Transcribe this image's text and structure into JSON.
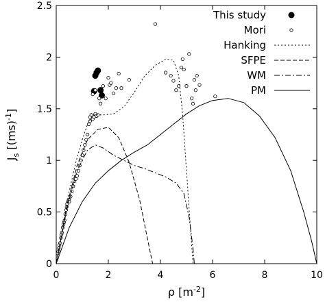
{
  "chart_data": {
    "type": "scatter",
    "xlabel_main": "ρ [m",
    "xlabel_sup": "-2",
    "xlabel_end": "]",
    "ylabel_main": "J",
    "ylabel_sub": "s",
    "ylabel_mid": " [(ms)",
    "ylabel_sup": "-1",
    "ylabel_end": "]",
    "xlim": [
      0,
      10
    ],
    "ylim": [
      0,
      2.5
    ],
    "xticks": [
      "0",
      "2",
      "4",
      "6",
      "8",
      "10"
    ],
    "yticks": [
      "0",
      "0.5",
      "1",
      "1.5",
      "2",
      "2.5"
    ],
    "grid": false,
    "legend_position": "top-right",
    "series": [
      {
        "name": "This study",
        "kind": "points",
        "marker": "filled-circle",
        "points": [
          [
            1.45,
            1.67
          ],
          [
            1.5,
            1.82
          ],
          [
            1.55,
            1.85
          ],
          [
            1.6,
            1.87
          ],
          [
            1.7,
            1.68
          ],
          [
            1.75,
            1.63
          ]
        ]
      },
      {
        "name": "Mori",
        "kind": "points",
        "marker": "open-circle",
        "points": [
          [
            0.02,
            0.05
          ],
          [
            0.05,
            0.1
          ],
          [
            0.08,
            0.12
          ],
          [
            0.1,
            0.15
          ],
          [
            0.12,
            0.18
          ],
          [
            0.15,
            0.2
          ],
          [
            0.18,
            0.25
          ],
          [
            0.2,
            0.28
          ],
          [
            0.22,
            0.3
          ],
          [
            0.25,
            0.35
          ],
          [
            0.28,
            0.38
          ],
          [
            0.3,
            0.4
          ],
          [
            0.32,
            0.42
          ],
          [
            0.35,
            0.48
          ],
          [
            0.38,
            0.52
          ],
          [
            0.4,
            0.55
          ],
          [
            0.42,
            0.58
          ],
          [
            0.45,
            0.6
          ],
          [
            0.48,
            0.62
          ],
          [
            0.5,
            0.6
          ],
          [
            0.55,
            0.65
          ],
          [
            0.6,
            0.7
          ],
          [
            0.65,
            0.75
          ],
          [
            0.7,
            0.8
          ],
          [
            0.75,
            0.82
          ],
          [
            0.8,
            0.85
          ],
          [
            0.85,
            0.9
          ],
          [
            0.9,
            0.95
          ],
          [
            0.95,
            1.0
          ],
          [
            1.0,
            1.05
          ],
          [
            1.05,
            1.1
          ],
          [
            1.1,
            1.15
          ],
          [
            1.15,
            1.2
          ],
          [
            1.2,
            1.25
          ],
          [
            1.25,
            1.35
          ],
          [
            1.3,
            1.38
          ],
          [
            1.3,
            1.42
          ],
          [
            1.35,
            1.44
          ],
          [
            1.4,
            1.4
          ],
          [
            1.45,
            1.42
          ],
          [
            1.5,
            1.45
          ],
          [
            1.55,
            1.43
          ],
          [
            1.6,
            1.44
          ],
          [
            1.4,
            1.64
          ],
          [
            1.5,
            1.68
          ],
          [
            1.65,
            1.6
          ],
          [
            1.7,
            1.55
          ],
          [
            1.8,
            1.72
          ],
          [
            1.9,
            1.6
          ],
          [
            2.0,
            1.8
          ],
          [
            2.05,
            1.73
          ],
          [
            2.1,
            1.75
          ],
          [
            2.2,
            1.65
          ],
          [
            2.3,
            1.7
          ],
          [
            2.4,
            1.84
          ],
          [
            2.5,
            1.7
          ],
          [
            2.8,
            1.78
          ],
          [
            3.8,
            2.32
          ],
          [
            4.2,
            1.85
          ],
          [
            4.4,
            1.82
          ],
          [
            4.5,
            1.77
          ],
          [
            4.6,
            1.68
          ],
          [
            4.7,
            1.72
          ],
          [
            4.8,
            1.9
          ],
          [
            4.85,
            1.98
          ],
          [
            4.9,
            1.88
          ],
          [
            5.0,
            1.72
          ],
          [
            5.1,
            2.03
          ],
          [
            5.2,
            1.6
          ],
          [
            5.3,
            1.78
          ],
          [
            5.35,
            1.68
          ],
          [
            5.4,
            1.82
          ],
          [
            5.5,
            1.73
          ],
          [
            6.1,
            1.62
          ],
          [
            5.25,
            1.55
          ]
        ]
      },
      {
        "name": "Hanking",
        "kind": "line",
        "dash": "2,3",
        "points": [
          [
            0.0,
            0.0
          ],
          [
            0.25,
            0.35
          ],
          [
            0.5,
            0.7
          ],
          [
            0.75,
            0.98
          ],
          [
            1.0,
            1.2
          ],
          [
            1.2,
            1.35
          ],
          [
            1.4,
            1.44
          ],
          [
            1.8,
            1.44
          ],
          [
            2.2,
            1.45
          ],
          [
            2.6,
            1.52
          ],
          [
            3.0,
            1.66
          ],
          [
            3.4,
            1.82
          ],
          [
            3.8,
            1.92
          ],
          [
            4.2,
            1.98
          ],
          [
            4.5,
            1.97
          ],
          [
            4.7,
            1.82
          ],
          [
            4.85,
            1.45
          ],
          [
            5.0,
            0.9
          ],
          [
            5.15,
            0.35
          ],
          [
            5.25,
            0.0
          ]
        ]
      },
      {
        "name": "SFPE",
        "kind": "line",
        "dash": "6,3",
        "points": [
          [
            0.0,
            0.0
          ],
          [
            0.4,
            0.55
          ],
          [
            0.8,
            0.95
          ],
          [
            1.2,
            1.2
          ],
          [
            1.6,
            1.3
          ],
          [
            2.0,
            1.32
          ],
          [
            2.4,
            1.22
          ],
          [
            2.8,
            0.98
          ],
          [
            3.2,
            0.62
          ],
          [
            3.6,
            0.12
          ],
          [
            3.7,
            0.0
          ]
        ]
      },
      {
        "name": "WM",
        "kind": "line",
        "dash": "8,3,2,3",
        "points": [
          [
            0.0,
            0.0
          ],
          [
            0.4,
            0.52
          ],
          [
            0.8,
            0.9
          ],
          [
            1.2,
            1.1
          ],
          [
            1.5,
            1.15
          ],
          [
            1.8,
            1.12
          ],
          [
            2.2,
            1.05
          ],
          [
            2.6,
            1.0
          ],
          [
            3.0,
            0.95
          ],
          [
            3.4,
            0.92
          ],
          [
            3.8,
            0.88
          ],
          [
            4.2,
            0.84
          ],
          [
            4.6,
            0.78
          ],
          [
            4.9,
            0.68
          ],
          [
            5.1,
            0.45
          ],
          [
            5.25,
            0.15
          ],
          [
            5.3,
            0.0
          ]
        ]
      },
      {
        "name": "PM",
        "kind": "line",
        "dash": "",
        "points": [
          [
            0.0,
            0.0
          ],
          [
            0.5,
            0.35
          ],
          [
            1.0,
            0.6
          ],
          [
            1.5,
            0.78
          ],
          [
            2.0,
            0.9
          ],
          [
            2.5,
            1.0
          ],
          [
            3.0,
            1.08
          ],
          [
            3.5,
            1.15
          ],
          [
            4.0,
            1.25
          ],
          [
            4.5,
            1.35
          ],
          [
            5.0,
            1.45
          ],
          [
            5.5,
            1.53
          ],
          [
            6.0,
            1.58
          ],
          [
            6.6,
            1.6
          ],
          [
            7.2,
            1.56
          ],
          [
            7.8,
            1.43
          ],
          [
            8.4,
            1.22
          ],
          [
            9.0,
            0.9
          ],
          [
            9.5,
            0.5
          ],
          [
            9.8,
            0.22
          ],
          [
            10.0,
            0.0
          ]
        ]
      }
    ]
  }
}
